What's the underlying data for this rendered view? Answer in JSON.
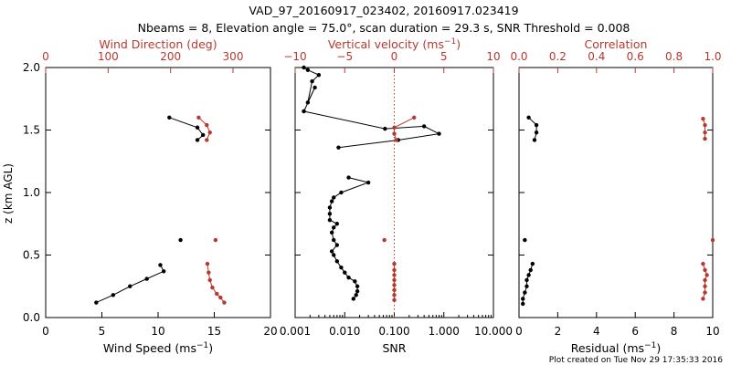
{
  "title_line1": "VAD_97_20160917_023402, 20160917.023419",
  "title_line2": "Nbeams = 8, Elevation angle = 75.0°, scan duration = 29.3 s, SNR Threshold = 0.008",
  "footer": "Plot created on Tue Nov 29 17:35:33 2016",
  "colors": {
    "primary": "#000000",
    "secondary": "#b8382e"
  },
  "chart_data": [
    {
      "type": "scatter",
      "ylabel": "z (km AGL)",
      "ylim": [
        0,
        2
      ],
      "yticks": [
        0.0,
        0.5,
        1.0,
        1.5,
        2.0
      ],
      "ytick_labels": [
        "0.0",
        "0.5",
        "1.0",
        "1.5",
        "2.0"
      ],
      "xlabel": "Wind Speed (ms",
      "xlabel_sup": "−1",
      "xlabel_suffix": ")",
      "xlim": [
        0,
        20
      ],
      "xticks": [
        0,
        5,
        10,
        15,
        20
      ],
      "xtick_labels": [
        "0",
        "5",
        "10",
        "15",
        "20"
      ],
      "top_label": "Wind Direction (deg)",
      "top_xlim": [
        0,
        360
      ],
      "top_ticks": [
        0,
        100,
        200,
        300
      ],
      "top_tick_labels": [
        "0",
        "100",
        "200",
        "300"
      ],
      "series": [
        {
          "role": "bottom",
          "color": "#000000",
          "segments": [
            [
              [
                11.0,
                1.6
              ],
              [
                13.5,
                1.52
              ],
              [
                14.0,
                1.46
              ],
              [
                13.5,
                1.42
              ]
            ],
            [
              [
                4.5,
                0.12
              ],
              [
                6.0,
                0.18
              ],
              [
                7.5,
                0.25
              ],
              [
                9.0,
                0.31
              ],
              [
                10.5,
                0.37
              ],
              [
                10.2,
                0.42
              ]
            ]
          ],
          "points": [
            [
              12.0,
              0.62
            ]
          ]
        },
        {
          "role": "top",
          "color": "#b8382e",
          "segments": [
            [
              [
                245,
                1.6
              ],
              [
                258,
                1.54
              ],
              [
                263,
                1.48
              ],
              [
                258,
                1.42
              ]
            ],
            [
              [
                259,
                0.43
              ],
              [
                261,
                0.36
              ],
              [
                263,
                0.3
              ],
              [
                267,
                0.24
              ],
              [
                274,
                0.19
              ],
              [
                280,
                0.16
              ],
              [
                286,
                0.12
              ]
            ]
          ],
          "points": [
            [
              272,
              0.62
            ]
          ]
        }
      ]
    },
    {
      "type": "line",
      "ylim": [
        0,
        2
      ],
      "xlabel": "SNR",
      "xscale": "log",
      "xlim": [
        0.001,
        10
      ],
      "xticks": [
        0.001,
        0.01,
        0.1,
        1,
        10
      ],
      "xtick_labels": [
        "0.001",
        "0.010",
        "0.100",
        "1.000",
        "10.000"
      ],
      "top_label": "Vertical velocity (ms",
      "top_label_sup": "−1",
      "top_label_suffix": ")",
      "top_xlim": [
        -10,
        10
      ],
      "top_ticks": [
        -10,
        -5,
        0,
        5,
        10
      ],
      "top_tick_labels": [
        "−10",
        "−5",
        "0",
        "5",
        "10"
      ],
      "series": [
        {
          "role": "bottom",
          "color": "#000000",
          "segments": [
            [
              [
                0.0015,
                1.65
              ],
              [
                0.0025,
                1.84
              ],
              [
                0.0018,
                1.72
              ],
              [
                0.0022,
                1.89
              ],
              [
                0.003,
                1.94
              ],
              [
                0.0018,
                1.98
              ],
              [
                0.0015,
                2.0
              ]
            ],
            [
              [
                0.0015,
                1.65
              ],
              [
                0.065,
                1.51
              ],
              [
                0.4,
                1.53
              ],
              [
                0.8,
                1.47
              ],
              [
                0.12,
                1.42
              ],
              [
                0.0075,
                1.36
              ]
            ],
            [
              [
                0.012,
                1.12
              ],
              [
                0.03,
                1.08
              ],
              [
                0.0085,
                1.0
              ],
              [
                0.006,
                0.96
              ],
              [
                0.0055,
                0.93
              ],
              [
                0.005,
                0.88
              ],
              [
                0.005,
                0.83
              ],
              [
                0.005,
                0.78
              ],
              [
                0.007,
                0.75
              ],
              [
                0.006,
                0.72
              ],
              [
                0.0055,
                0.68
              ],
              [
                0.006,
                0.62
              ],
              [
                0.007,
                0.58
              ],
              [
                0.0055,
                0.53
              ],
              [
                0.006,
                0.5
              ],
              [
                0.007,
                0.45
              ],
              [
                0.0085,
                0.4
              ],
              [
                0.01,
                0.36
              ],
              [
                0.012,
                0.32
              ],
              [
                0.016,
                0.29
              ],
              [
                0.018,
                0.25
              ],
              [
                0.018,
                0.21
              ],
              [
                0.017,
                0.18
              ],
              [
                0.015,
                0.15
              ]
            ]
          ],
          "points": []
        },
        {
          "role": "top",
          "color": "#b8382e",
          "segments": [
            [
              [
                2.0,
                1.6
              ],
              [
                0.0,
                1.52
              ],
              [
                0.0,
                1.47
              ],
              [
                0.2,
                1.42
              ]
            ],
            [
              [
                0.0,
                0.43
              ],
              [
                0.0,
                0.38
              ],
              [
                0.0,
                0.34
              ],
              [
                0.0,
                0.3
              ],
              [
                0.0,
                0.26
              ],
              [
                0.0,
                0.22
              ],
              [
                0.0,
                0.18
              ],
              [
                0.0,
                0.14
              ]
            ]
          ],
          "points": [
            [
              -1.0,
              0.62
            ]
          ]
        }
      ],
      "reference_line": {
        "axis": "top",
        "value": 0,
        "style": "dotted",
        "color": "#b8382e"
      }
    },
    {
      "type": "scatter",
      "ylim": [
        0,
        2
      ],
      "xlabel": "Residual (ms",
      "xlabel_sup": "−1",
      "xlabel_suffix": ")",
      "xlim": [
        0,
        10
      ],
      "xticks": [
        0,
        2,
        4,
        6,
        8,
        10
      ],
      "xtick_labels": [
        "0",
        "2",
        "4",
        "6",
        "8",
        "10"
      ],
      "top_label": "Correlation",
      "top_xlim": [
        0,
        1
      ],
      "top_ticks": [
        0,
        0.2,
        0.4,
        0.6,
        0.8,
        1.0
      ],
      "top_tick_labels": [
        "0.0",
        "0.2",
        "0.4",
        "0.6",
        "0.8",
        "1.0"
      ],
      "series": [
        {
          "role": "bottom",
          "color": "#000000",
          "segments": [
            [
              [
                0.5,
                1.6
              ],
              [
                0.9,
                1.54
              ],
              [
                0.9,
                1.48
              ],
              [
                0.8,
                1.42
              ]
            ],
            [
              [
                0.7,
                0.43
              ],
              [
                0.6,
                0.38
              ],
              [
                0.5,
                0.34
              ],
              [
                0.4,
                0.3
              ],
              [
                0.4,
                0.25
              ],
              [
                0.3,
                0.2
              ],
              [
                0.2,
                0.15
              ],
              [
                0.2,
                0.11
              ]
            ]
          ],
          "points": [
            [
              0.3,
              0.62
            ]
          ]
        },
        {
          "role": "top",
          "color": "#b8382e",
          "segments": [
            [
              [
                0.95,
                1.59
              ],
              [
                0.96,
                1.54
              ],
              [
                0.96,
                1.48
              ],
              [
                0.96,
                1.43
              ]
            ],
            [
              [
                0.95,
                0.43
              ],
              [
                0.96,
                0.38
              ],
              [
                0.97,
                0.34
              ],
              [
                0.96,
                0.3
              ],
              [
                0.96,
                0.25
              ],
              [
                0.96,
                0.2
              ],
              [
                0.95,
                0.15
              ]
            ]
          ],
          "points": [
            [
              1.0,
              0.62
            ]
          ]
        }
      ]
    }
  ]
}
